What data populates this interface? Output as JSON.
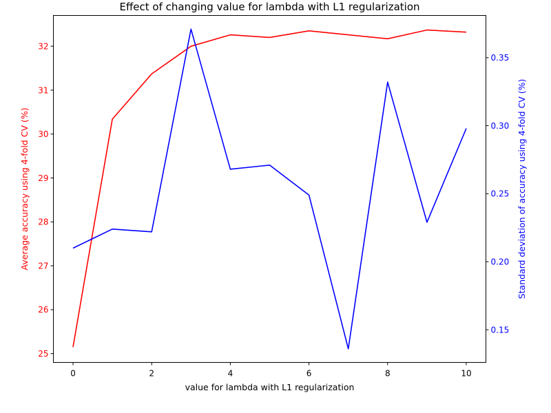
{
  "chart_data": {
    "type": "line",
    "title": "Effect of changing value for lambda with L1 regularization",
    "xlabel": "value for lambda with L1 regularization",
    "ylabel_left": "Average accuracy using 4-fold CV (%)",
    "ylabel_right": "Standard deviation of accuracy using 4-fold CV (%)",
    "x": [
      0,
      1,
      2,
      3,
      4,
      5,
      6,
      7,
      8,
      9,
      10
    ],
    "xlim": [
      -0.5,
      10.5
    ],
    "xticks": [
      0,
      2,
      4,
      6,
      8,
      10
    ],
    "ylim_left": [
      24.8,
      32.7
    ],
    "yticks_left": [
      25,
      26,
      27,
      28,
      29,
      30,
      31,
      32
    ],
    "ylim_right": [
      0.126,
      0.381
    ],
    "yticks_right": [
      0.15,
      0.2,
      0.25,
      0.3,
      0.35
    ],
    "grid": false,
    "series": [
      {
        "axis": "left",
        "color": "#ff0000",
        "values": [
          25.15,
          30.34,
          31.37,
          32.0,
          32.26,
          32.2,
          32.35,
          32.26,
          32.17,
          32.37,
          32.32
        ]
      },
      {
        "axis": "right",
        "color": "#0000ff",
        "values": [
          0.21,
          0.224,
          0.222,
          0.371,
          0.268,
          0.271,
          0.249,
          0.136,
          0.332,
          0.229,
          0.298
        ]
      }
    ]
  }
}
